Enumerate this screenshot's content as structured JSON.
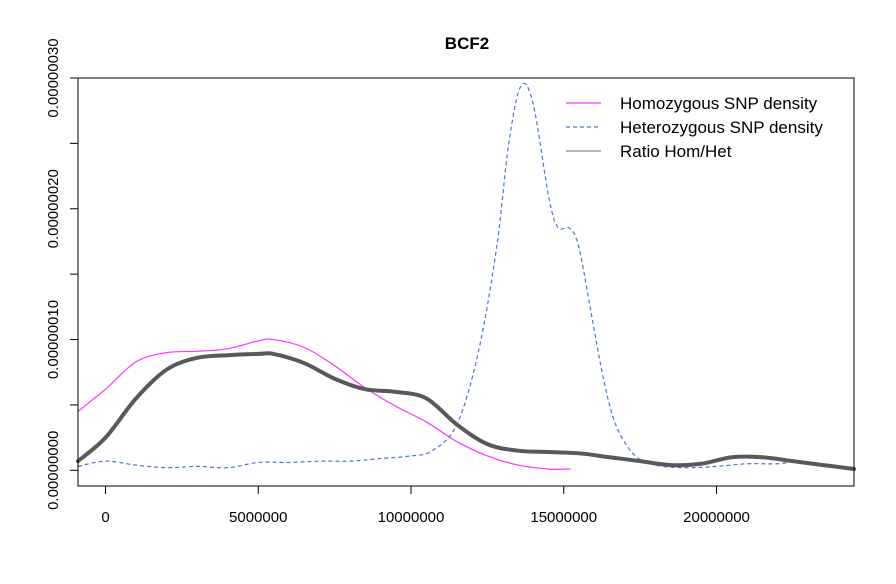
{
  "chart_data": {
    "type": "line",
    "title": "BCF2",
    "xlabel": "",
    "ylabel": "",
    "xlim": [
      -900000,
      24500000
    ],
    "ylim": [
      -1.2e-08,
      3e-07
    ],
    "x_ticks": [
      0,
      5000000,
      10000000,
      15000000,
      20000000
    ],
    "x_tick_labels": [
      "0",
      "5000000",
      "10000000",
      "15000000",
      "20000000"
    ],
    "y_ticks": [
      0,
      1e-07,
      2e-07,
      3e-07
    ],
    "y_tick_labels": [
      "0.00000000",
      "0.00000010",
      "0.00000020",
      "0.00000030"
    ],
    "legend_position": "top-right",
    "series": [
      {
        "name": "Homozygous SNP density",
        "color": "#ff33ff",
        "dash": "solid",
        "width": 1.2,
        "x": [
          -900000,
          0,
          1000000,
          2000000,
          3000000,
          4000000,
          5000000,
          5500000,
          6500000,
          7500000,
          8500000,
          9500000,
          10500000,
          11500000,
          12500000,
          13500000,
          14500000,
          15200000
        ],
        "y": [
          4.5e-08,
          6.2e-08,
          8.3e-08,
          9e-08,
          9.1e-08,
          9.3e-08,
          9.9e-08,
          1e-07,
          9.4e-08,
          8e-08,
          6.3e-08,
          4.9e-08,
          3.7e-08,
          2.2e-08,
          1.1e-08,
          4e-09,
          1e-09,
          1e-09
        ]
      },
      {
        "name": "Heterozygous SNP density",
        "color": "#4a74d6",
        "dash": "dashed",
        "width": 1.2,
        "x": [
          -900000,
          0,
          1000000,
          2000000,
          3000000,
          4000000,
          5000000,
          6000000,
          7000000,
          8000000,
          9000000,
          10000000,
          10700000,
          11500000,
          12200000,
          12800000,
          13200000,
          13600000,
          14000000,
          14500000,
          14800000,
          15200000,
          15500000,
          15900000,
          16300000,
          16700000,
          17300000,
          18000000,
          19000000,
          20000000,
          21000000,
          22000000,
          22500000
        ],
        "y": [
          3e-09,
          7e-09,
          4e-09,
          2e-09,
          3e-09,
          2e-09,
          6e-09,
          6e-09,
          7e-09,
          7e-09,
          9e-09,
          1.1e-08,
          1.5e-08,
          3.5e-08,
          9e-08,
          1.7e-07,
          2.5e-07,
          2.94e-07,
          2.8e-07,
          2.1e-07,
          1.86e-07,
          1.85e-07,
          1.7e-07,
          1.2e-07,
          7e-08,
          3.5e-08,
          1.2e-08,
          4e-09,
          2e-09,
          3e-09,
          5e-09,
          5e-09,
          7e-09
        ]
      },
      {
        "name": "Ratio Hom/Het",
        "color": "#595959",
        "dash": "solid",
        "width": 4,
        "x": [
          -900000,
          0,
          1000000,
          2000000,
          3000000,
          4000000,
          5000000,
          5500000,
          6500000,
          7500000,
          8500000,
          9500000,
          10500000,
          11500000,
          12500000,
          13500000,
          14500000,
          15500000,
          16500000,
          17500000,
          18500000,
          19500000,
          20500000,
          21500000,
          22500000,
          23500000,
          24500000
        ],
        "y": [
          7e-09,
          2.5e-08,
          5.5e-08,
          7.7e-08,
          8.6e-08,
          8.8e-08,
          8.9e-08,
          8.9e-08,
          8.2e-08,
          7e-08,
          6.2e-08,
          6e-08,
          5.5e-08,
          3.5e-08,
          2e-08,
          1.5e-08,
          1.4e-08,
          1.3e-08,
          1e-08,
          7e-09,
          4e-09,
          5e-09,
          1e-08,
          1e-08,
          7e-09,
          4e-09,
          1e-09
        ]
      }
    ]
  }
}
